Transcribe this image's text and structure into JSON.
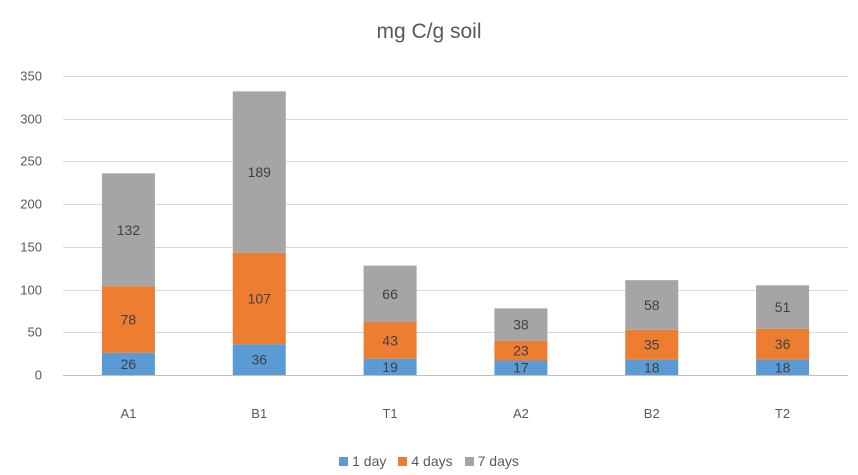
{
  "chart_data": {
    "type": "bar",
    "stacked": true,
    "title": "mg C/g soil",
    "xlabel": "",
    "ylabel": "",
    "categories": [
      "A1",
      "B1",
      "T1",
      "A2",
      "B2",
      "T2"
    ],
    "series": [
      {
        "name": "1 day",
        "color": "#5b9bd5",
        "values": [
          26,
          36,
          19,
          17,
          18,
          18
        ]
      },
      {
        "name": "4 days",
        "color": "#ed7d31",
        "values": [
          78,
          107,
          43,
          23,
          35,
          36
        ]
      },
      {
        "name": "7 days",
        "color": "#a5a5a5",
        "values": [
          132,
          189,
          66,
          38,
          58,
          51
        ]
      }
    ],
    "ylim": [
      0,
      350
    ],
    "yticks": [
      0,
      50,
      100,
      150,
      200,
      250,
      300,
      350
    ],
    "grid": true,
    "legend_position": "bottom"
  }
}
